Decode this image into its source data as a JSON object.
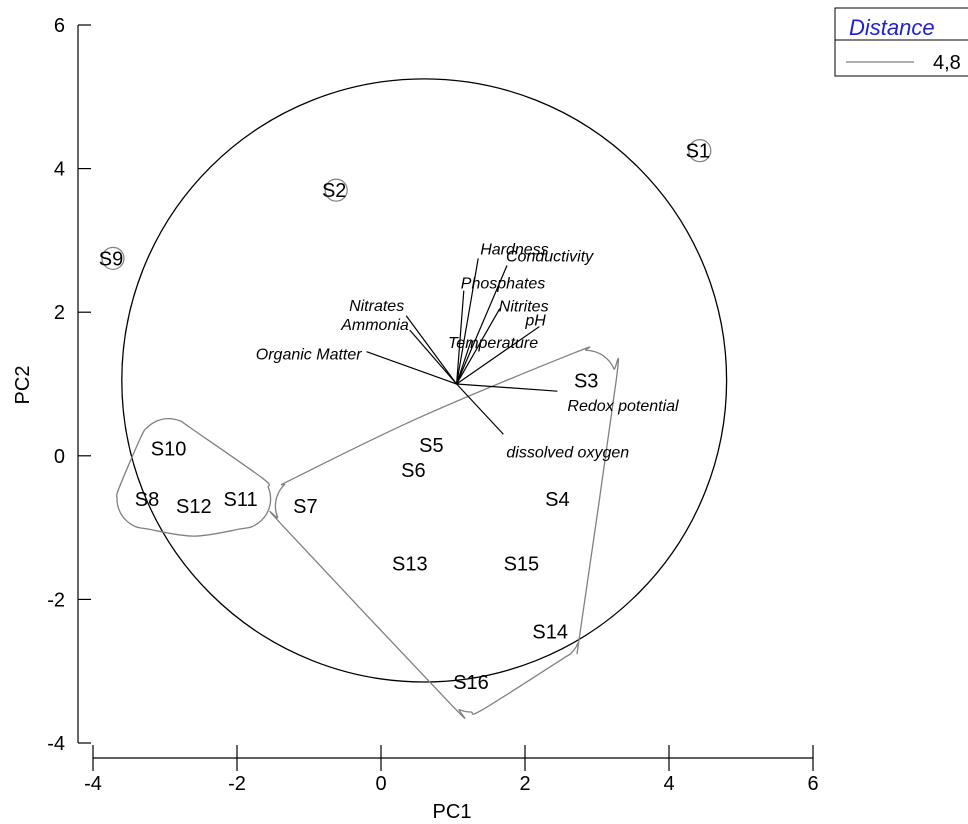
{
  "chart_data": {
    "type": "scatter",
    "title": "",
    "xlabel": "PC1",
    "ylabel": "PC2",
    "xlim": [
      -4,
      6
    ],
    "ylim": [
      -4,
      6
    ],
    "xticks": [
      "-4",
      "-2",
      "0",
      "2",
      "4",
      "6"
    ],
    "yticks": [
      "-4",
      "-2",
      "0",
      "2",
      "4",
      "6"
    ],
    "grid": false,
    "legend": {
      "title": "Distance",
      "placement": "top-right",
      "entries": [
        {
          "label": "4,8",
          "color": "#808080"
        }
      ]
    },
    "sites": [
      {
        "label": "S1",
        "x": 4.4,
        "y": 4.25
      },
      {
        "label": "S2",
        "x": -0.65,
        "y": 3.7
      },
      {
        "label": "S3",
        "x": 2.85,
        "y": 1.05
      },
      {
        "label": "S4",
        "x": 2.45,
        "y": -0.6
      },
      {
        "label": "S5",
        "x": 0.7,
        "y": 0.15
      },
      {
        "label": "S6",
        "x": 0.45,
        "y": -0.2
      },
      {
        "label": "S7",
        "x": -1.05,
        "y": -0.7
      },
      {
        "label": "S8",
        "x": -3.25,
        "y": -0.6
      },
      {
        "label": "S9",
        "x": -3.75,
        "y": 2.75
      },
      {
        "label": "S10",
        "x": -2.95,
        "y": 0.1
      },
      {
        "label": "S11",
        "x": -1.95,
        "y": -0.6
      },
      {
        "label": "S12",
        "x": -2.6,
        "y": -0.7
      },
      {
        "label": "S13",
        "x": 0.4,
        "y": -1.5
      },
      {
        "label": "S14",
        "x": 2.35,
        "y": -2.45
      },
      {
        "label": "S15",
        "x": 1.95,
        "y": -1.5
      },
      {
        "label": "S16",
        "x": 1.25,
        "y": -3.15
      }
    ],
    "vector_origin": {
      "x": 1.05,
      "y": 1.0
    },
    "vectors": [
      {
        "label": "Hardness",
        "x": 1.35,
        "y": 2.75
      },
      {
        "label": "Conductivity",
        "x": 1.75,
        "y": 2.65
      },
      {
        "label": "Phosphates",
        "x": 1.15,
        "y": 2.3
      },
      {
        "label": "Nitrites",
        "x": 1.65,
        "y": 2.05
      },
      {
        "label": "pH",
        "x": 2.2,
        "y": 1.8
      },
      {
        "label": "Temperature",
        "x": 1.25,
        "y": 1.6
      },
      {
        "label": "Redox potential",
        "x": 2.45,
        "y": 0.9
      },
      {
        "label": "dissolved oxygen",
        "x": 1.7,
        "y": 0.3
      },
      {
        "label": "Nitrates",
        "x": 0.35,
        "y": 1.95
      },
      {
        "label": "Ammonia",
        "x": 0.4,
        "y": 1.75
      },
      {
        "label": "Organic Matter",
        "x": -0.2,
        "y": 1.45
      }
    ],
    "circle": {
      "cx": 0.6,
      "cy": 1.05,
      "r": 4.2
    },
    "distance_clusters": [
      {
        "members": [
          "S8",
          "S10",
          "S11",
          "S12"
        ]
      },
      {
        "members": [
          "S3",
          "S4",
          "S5",
          "S6",
          "S7",
          "S13",
          "S14",
          "S15",
          "S16"
        ]
      },
      {
        "members": [
          "S1"
        ]
      },
      {
        "members": [
          "S2"
        ]
      },
      {
        "members": [
          "S9"
        ]
      }
    ],
    "colors": {
      "cluster": "#808080",
      "circle": "#000000",
      "legend_title": "#1f1fd6"
    }
  }
}
